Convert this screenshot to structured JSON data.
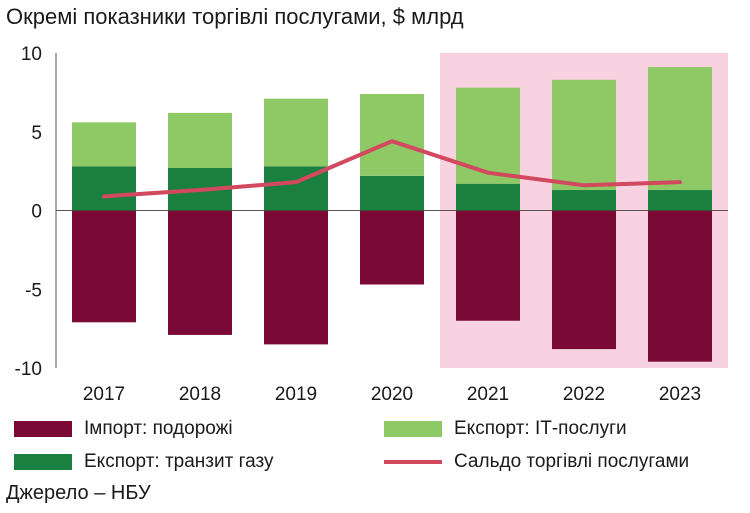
{
  "chart_data": {
    "type": "bar",
    "title": "Окремі показники торгівлі послугами, $ млрд",
    "categories": [
      "2017",
      "2018",
      "2019",
      "2020",
      "2021",
      "2022",
      "2023"
    ],
    "ylim": [
      -10,
      10
    ],
    "yticks": [
      10,
      5,
      0,
      -5,
      -10
    ],
    "ytick_labels": [
      "10",
      "5",
      "0",
      "-5",
      "-10"
    ],
    "series": [
      {
        "name": "Імпорт:  подорожі",
        "kind": "bar",
        "values": [
          -7.1,
          -7.9,
          -8.5,
          -4.7,
          -7.0,
          -8.8,
          -9.6
        ],
        "color": "#7a0a35"
      },
      {
        "name": "Експорт: транзит газу",
        "kind": "bar",
        "values": [
          2.8,
          2.7,
          2.8,
          2.2,
          1.7,
          1.3,
          1.3
        ],
        "color": "#1a8040"
      },
      {
        "name": "Експорт: ІТ-послуги",
        "kind": "bar",
        "values": [
          2.8,
          3.5,
          4.3,
          5.2,
          6.1,
          7.0,
          7.8
        ],
        "color": "#8ec965"
      },
      {
        "name": "Сальдо торгівлі послугами",
        "kind": "line",
        "values": [
          0.9,
          1.3,
          1.8,
          4.4,
          2.4,
          1.6,
          1.8
        ],
        "color": "#d2485e"
      }
    ],
    "highlight_categories": [
      "2021",
      "2022",
      "2023"
    ],
    "highlight_color": "#f9d2e2",
    "grid": false,
    "legend": "bottom",
    "source": "Джерело – НБУ"
  }
}
